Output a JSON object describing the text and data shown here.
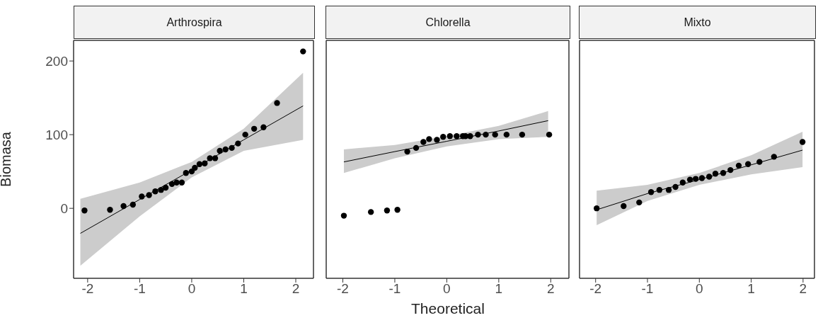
{
  "chart_data": [
    {
      "type": "scatter",
      "title": "Arthrospira",
      "ylabel": "Biomasa",
      "xlim": [
        -2.27,
        2.34
      ],
      "xticks": [
        -2,
        -1,
        0,
        1,
        2
      ],
      "ylim": [
        -95,
        228
      ],
      "yticks": [
        0,
        100,
        200
      ],
      "series": [
        {
          "marker": "circle",
          "color": "#000000",
          "x": [
            -2.06,
            -1.57,
            -1.31,
            -1.13,
            -0.96,
            -0.82,
            -0.7,
            -0.59,
            -0.5,
            -0.38,
            -0.29,
            -0.19,
            -0.11,
            0.0,
            0.06,
            0.15,
            0.25,
            0.35,
            0.45,
            0.54,
            0.65,
            0.77,
            0.89,
            1.03,
            1.2,
            1.38,
            1.64,
            2.14
          ],
          "values": [
            -3,
            -2,
            3,
            5,
            16,
            18,
            23,
            25,
            28,
            33,
            35,
            35,
            48,
            50,
            55,
            60,
            61,
            68,
            68,
            78,
            80,
            82,
            88,
            100,
            108,
            110,
            143,
            213
          ]
        },
        {
          "type": "line",
          "color": "#000000",
          "x": [
            -2.14,
            -1,
            0,
            1,
            2.14
          ],
          "values": [
            -34,
            12,
            52,
            93,
            139
          ],
          "lower": [
            -78,
            -11,
            42,
            78,
            93
          ],
          "upper": [
            13,
            35,
            63,
            108,
            184
          ]
        }
      ]
    },
    {
      "type": "scatter",
      "title": "Chlorella",
      "xlabel": "Theoretical",
      "xlim": [
        -2.32,
        2.35
      ],
      "xticks": [
        -2,
        -1,
        0,
        1,
        2
      ],
      "ylim": [
        -95,
        228
      ],
      "yticks": [
        0,
        100,
        200
      ],
      "tick_labels": "x",
      "series": [
        {
          "marker": "circle",
          "color": "#000000",
          "x": [
            -1.98,
            -1.46,
            -1.15,
            -0.95,
            -0.76,
            -0.59,
            -0.45,
            -0.34,
            -0.19,
            -0.07,
            0.06,
            0.19,
            0.31,
            0.36,
            0.45,
            0.6,
            0.75,
            0.93,
            1.15,
            1.45,
            1.97
          ],
          "values": [
            -10,
            -5,
            -3,
            -2,
            77,
            82,
            90,
            94,
            93,
            97,
            98,
            98,
            98,
            98,
            98,
            100,
            100,
            100,
            100,
            100,
            100
          ]
        },
        {
          "type": "line",
          "color": "#000000",
          "x": [
            -1.98,
            -1,
            0,
            1,
            1.95
          ],
          "values": [
            63,
            77,
            91,
            105,
            119
          ],
          "lower": [
            48,
            68,
            84,
            94,
            97
          ],
          "upper": [
            80,
            86,
            98,
            112,
            132
          ]
        }
      ]
    },
    {
      "type": "scatter",
      "title": "Mixto",
      "xlim": [
        -2.31,
        2.22
      ],
      "xticks": [
        -2,
        -1,
        0,
        1,
        2
      ],
      "ylim": [
        -95,
        228
      ],
      "yticks": [
        0,
        100,
        200
      ],
      "tick_labels": "x",
      "series": [
        {
          "marker": "circle",
          "color": "#000000",
          "x": [
            -1.98,
            -1.46,
            -1.16,
            -0.93,
            -0.77,
            -0.59,
            -0.46,
            -0.32,
            -0.18,
            -0.07,
            0.05,
            0.19,
            0.31,
            0.46,
            0.6,
            0.76,
            0.94,
            1.16,
            1.44,
            1.99
          ],
          "values": [
            0,
            3,
            8,
            22,
            25,
            25,
            29,
            35,
            39,
            40,
            41,
            43,
            47,
            48,
            52,
            58,
            60,
            63,
            70,
            90
          ]
        },
        {
          "type": "line",
          "color": "#000000",
          "x": [
            -1.98,
            -1,
            0,
            1,
            1.99
          ],
          "values": [
            -2,
            20,
            39,
            59,
            79
          ],
          "lower": [
            -23,
            10,
            32,
            46,
            56
          ],
          "upper": [
            24,
            32,
            48,
            72,
            104
          ]
        }
      ]
    }
  ]
}
